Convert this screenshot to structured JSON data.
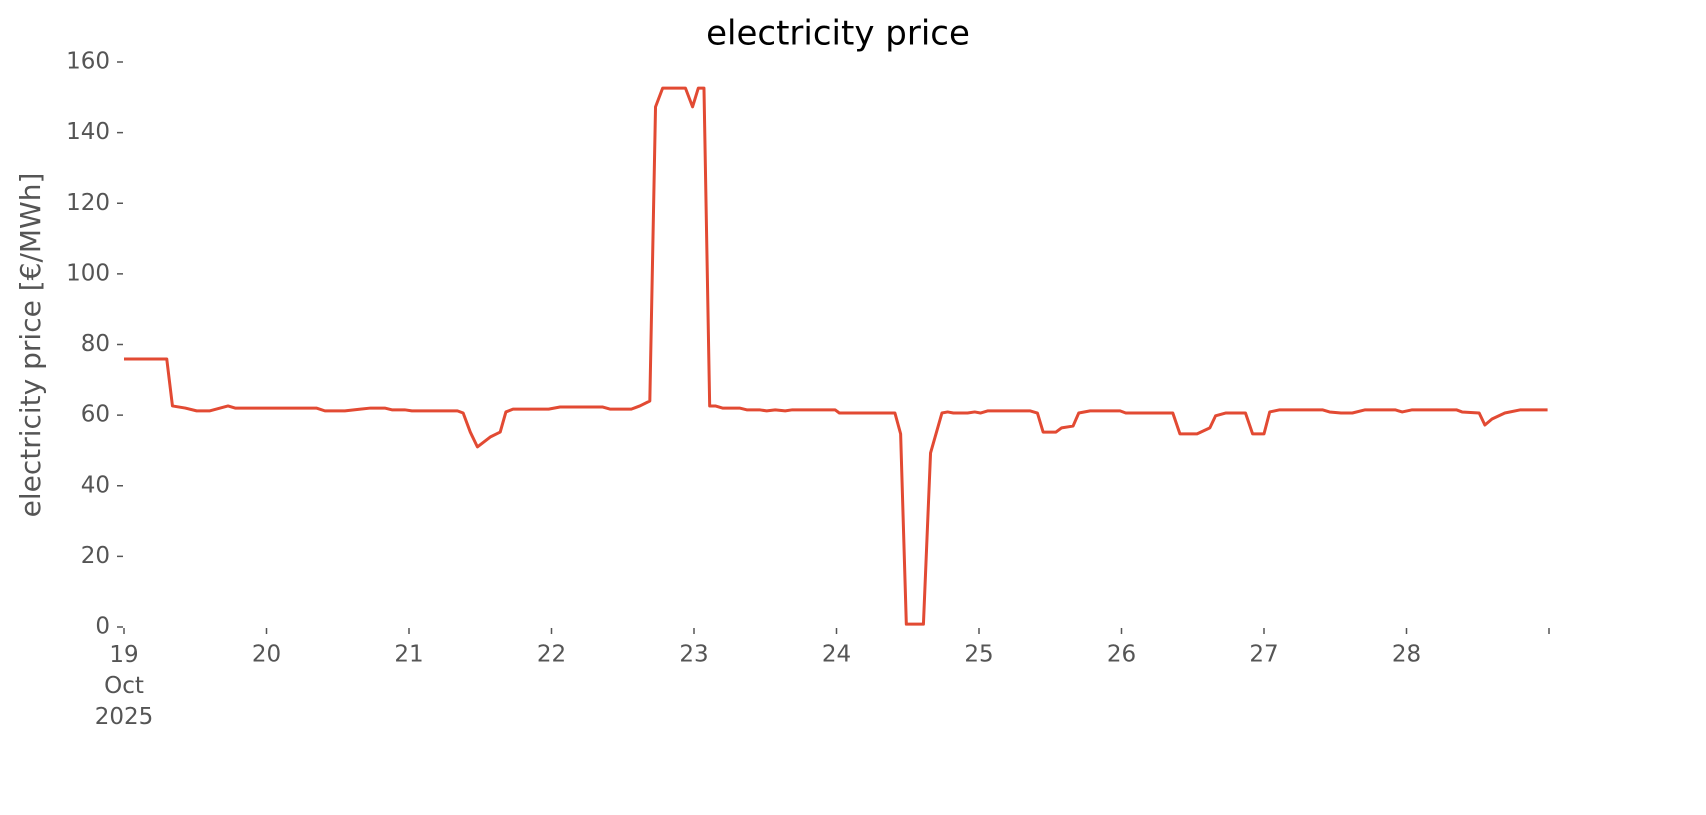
{
  "chart_data": {
    "type": "line",
    "title": "electricity price",
    "y_label": "electricity price [€/MWh]",
    "x": [
      19.0,
      19.3,
      19.34,
      19.43,
      19.51,
      19.6,
      19.73,
      19.78,
      20.35,
      20.41,
      20.55,
      20.66,
      20.73,
      20.83,
      20.88,
      20.97,
      21.02,
      21.34,
      21.38,
      21.43,
      21.48,
      21.57,
      21.64,
      21.68,
      21.73,
      21.98,
      22.06,
      22.36,
      22.41,
      22.56,
      22.62,
      22.69,
      22.73,
      22.78,
      22.94,
      22.99,
      23.03,
      23.07,
      23.11,
      23.15,
      23.2,
      23.32,
      23.37,
      23.46,
      23.51,
      23.57,
      23.64,
      23.69,
      23.99,
      24.02,
      24.41,
      24.45,
      24.49,
      24.61,
      24.66,
      24.74,
      24.78,
      24.82,
      24.92,
      24.97,
      25.01,
      25.06,
      25.36,
      25.41,
      25.45,
      25.54,
      25.58,
      25.66,
      25.7,
      25.78,
      25.99,
      26.03,
      26.36,
      26.41,
      26.53,
      26.62,
      26.66,
      26.73,
      26.87,
      26.92,
      27.0,
      27.04,
      27.11,
      27.41,
      27.46,
      27.54,
      27.62,
      27.71,
      27.92,
      27.97,
      28.04,
      28.35,
      28.39,
      28.51,
      28.55,
      28.6,
      28.69,
      28.8,
      28.99
    ],
    "series": [
      {
        "name": "electricity price",
        "color": "#E24A33",
        "values": [
          75.9,
          75.9,
          62.6,
          62,
          61.2,
          61.2,
          62.6,
          62,
          62,
          61.2,
          61.2,
          61.7,
          62,
          62,
          61.5,
          61.5,
          61.2,
          61.2,
          60.6,
          55.2,
          51,
          53.8,
          55.2,
          60.9,
          61.7,
          61.7,
          62.3,
          62.3,
          61.7,
          61.7,
          62.6,
          64,
          147.3,
          152.6,
          152.6,
          147.3,
          152.6,
          152.6,
          62.6,
          62.6,
          62,
          62,
          61.5,
          61.5,
          61.2,
          61.5,
          61.2,
          61.5,
          61.5,
          60.6,
          60.6,
          54.7,
          0.8,
          0.8,
          49.3,
          60.6,
          60.9,
          60.6,
          60.6,
          60.9,
          60.6,
          61.2,
          61.2,
          60.6,
          55.2,
          55.2,
          56.4,
          56.9,
          60.6,
          61.2,
          61.2,
          60.6,
          60.6,
          54.7,
          54.7,
          56.4,
          59.8,
          60.6,
          60.6,
          54.7,
          54.7,
          60.9,
          61.5,
          61.5,
          60.9,
          60.6,
          60.6,
          61.5,
          61.5,
          60.9,
          61.5,
          61.5,
          60.9,
          60.6,
          57.2,
          58.9,
          60.6,
          61.5,
          61.5
        ]
      }
    ],
    "xlim": [
      19,
      29
    ],
    "xticks": [
      {
        "value": 19,
        "label": "19 Oct 2025"
      },
      20,
      21,
      22,
      23,
      24,
      25,
      26,
      27,
      28,
      {
        "value": 29,
        "label": null
      }
    ],
    "ylim": [
      0,
      160
    ],
    "yticks": [
      0,
      20,
      40,
      60,
      80,
      100,
      120,
      140,
      160
    ],
    "grid": false
  }
}
